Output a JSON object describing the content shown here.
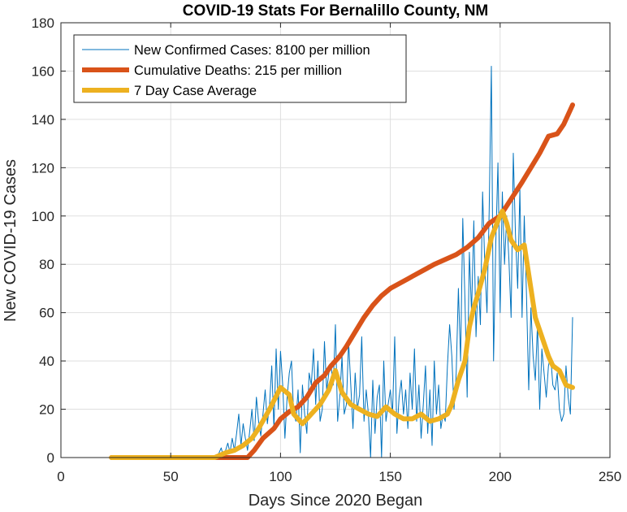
{
  "chart_data": {
    "type": "line",
    "title": "COVID-19 Stats For Bernalillo County, NM",
    "xlabel": "Days Since 2020 Began",
    "ylabel": "New COVID-19 Cases",
    "xlim": [
      0,
      250
    ],
    "ylim": [
      0,
      180
    ],
    "xticks": [
      0,
      50,
      100,
      150,
      200,
      250
    ],
    "yticks": [
      0,
      20,
      40,
      60,
      80,
      100,
      120,
      140,
      160,
      180
    ],
    "grid": true,
    "legend_position": "top-left",
    "series": [
      {
        "name": "New Confirmed Cases: 8100 per million",
        "color": "#0072BD",
        "style": "thin",
        "x": [
          23,
          25,
          27,
          29,
          31,
          33,
          35,
          37,
          39,
          41,
          43,
          45,
          47,
          49,
          51,
          53,
          55,
          57,
          59,
          61,
          63,
          65,
          67,
          69,
          71,
          72,
          73,
          74,
          75,
          76,
          77,
          78,
          79,
          80,
          81,
          82,
          83,
          84,
          85,
          86,
          87,
          88,
          89,
          90,
          91,
          92,
          93,
          94,
          95,
          96,
          97,
          98,
          99,
          100,
          101,
          102,
          103,
          104,
          105,
          106,
          107,
          108,
          109,
          110,
          111,
          112,
          113,
          114,
          115,
          116,
          117,
          118,
          119,
          120,
          121,
          122,
          123,
          124,
          125,
          126,
          127,
          128,
          129,
          130,
          131,
          132,
          133,
          134,
          135,
          136,
          137,
          138,
          139,
          140,
          141,
          142,
          143,
          144,
          145,
          146,
          147,
          148,
          149,
          150,
          151,
          152,
          153,
          154,
          155,
          156,
          157,
          158,
          159,
          160,
          161,
          162,
          163,
          164,
          165,
          166,
          167,
          168,
          169,
          170,
          171,
          172,
          173,
          174,
          175,
          176,
          177,
          178,
          179,
          180,
          181,
          182,
          183,
          184,
          185,
          186,
          187,
          188,
          189,
          190,
          191,
          192,
          193,
          194,
          195,
          196,
          197,
          198,
          199,
          200,
          201,
          202,
          203,
          204,
          205,
          206,
          207,
          208,
          209,
          210,
          211,
          212,
          213,
          214,
          215,
          216,
          217,
          218,
          219,
          220,
          221,
          222,
          223,
          224,
          225,
          226,
          227,
          228,
          229,
          230,
          231,
          232,
          233
        ],
        "y": [
          0,
          0,
          0,
          0,
          0,
          0,
          0,
          0,
          0,
          0,
          0,
          0,
          0,
          0,
          0,
          0,
          0,
          0,
          0,
          0,
          0,
          0,
          0,
          0,
          0,
          2,
          4,
          0,
          3,
          6,
          2,
          8,
          3,
          10,
          18,
          5,
          14,
          8,
          3,
          11,
          20,
          7,
          25,
          15,
          9,
          18,
          28,
          14,
          22,
          38,
          12,
          45,
          20,
          44,
          30,
          8,
          25,
          35,
          40,
          18,
          15,
          28,
          2,
          30,
          18,
          10,
          35,
          30,
          45,
          22,
          40,
          15,
          20,
          48,
          28,
          35,
          38,
          30,
          55,
          15,
          25,
          42,
          18,
          22,
          48,
          30,
          12,
          35,
          20,
          26,
          50,
          15,
          28,
          18,
          0,
          32,
          10,
          25,
          30,
          0,
          40,
          15,
          22,
          28,
          18,
          50,
          10,
          25,
          32,
          18,
          28,
          12,
          35,
          20,
          45,
          15,
          30,
          8,
          22,
          38,
          10,
          28,
          5,
          40,
          18,
          30,
          12,
          18,
          15,
          38,
          55,
          42,
          20,
          35,
          70,
          40,
          99,
          65,
          25,
          85,
          60,
          98,
          50,
          75,
          55,
          110,
          80,
          60,
          102,
          162,
          40,
          88,
          122,
          60,
          110,
          80,
          100,
          82,
          58,
          126,
          92,
          70,
          111,
          58,
          100,
          68,
          28,
          62,
          42,
          32,
          55,
          20,
          45,
          35,
          25,
          38,
          42,
          30,
          28,
          35,
          20,
          15,
          18,
          38,
          25,
          18,
          58
        ]
      },
      {
        "name": "Cumulative Deaths: 215 per million",
        "color": "#D95319",
        "style": "thick",
        "x": [
          23,
          50,
          70,
          79,
          85,
          88,
          92,
          97,
          100,
          104,
          108,
          112,
          116,
          120,
          123,
          127,
          130,
          134,
          138,
          142,
          146,
          150,
          154,
          158,
          162,
          166,
          170,
          175,
          180,
          185,
          190,
          195,
          200,
          205,
          210,
          214,
          218,
          222,
          226,
          229,
          233
        ],
        "y": [
          0,
          0,
          0,
          0,
          0,
          3,
          8,
          12,
          16,
          19,
          21,
          25,
          31,
          34,
          38,
          42,
          46,
          52,
          58,
          63,
          67,
          70,
          72,
          74,
          76,
          78,
          80,
          82,
          84,
          87,
          91,
          97,
          100,
          107,
          114,
          120,
          126,
          133,
          134,
          138,
          146
        ]
      },
      {
        "name": "7 Day Case Average",
        "color": "#EDB120",
        "style": "thick",
        "x": [
          23,
          40,
          60,
          70,
          75,
          79,
          83,
          87,
          90,
          95,
          100,
          104,
          106,
          108,
          110,
          114,
          118,
          122,
          125,
          128,
          132,
          136,
          140,
          144,
          148,
          152,
          156,
          160,
          164,
          168,
          172,
          176,
          178,
          181,
          184,
          186,
          188,
          190,
          193,
          196,
          199,
          201,
          203,
          205,
          208,
          211,
          214,
          216,
          219,
          222,
          224,
          227,
          230,
          233
        ],
        "y": [
          0,
          0,
          0,
          0,
          2,
          3,
          5,
          8,
          12,
          20,
          29,
          26,
          18,
          16,
          14,
          18,
          22,
          28,
          36,
          27,
          22,
          20,
          18,
          17,
          21,
          18,
          16,
          16,
          18,
          15,
          16,
          18,
          22,
          32,
          40,
          54,
          62,
          68,
          78,
          91,
          98,
          102,
          97,
          90,
          86,
          88,
          70,
          58,
          50,
          42,
          38,
          36,
          30,
          29
        ]
      }
    ]
  }
}
